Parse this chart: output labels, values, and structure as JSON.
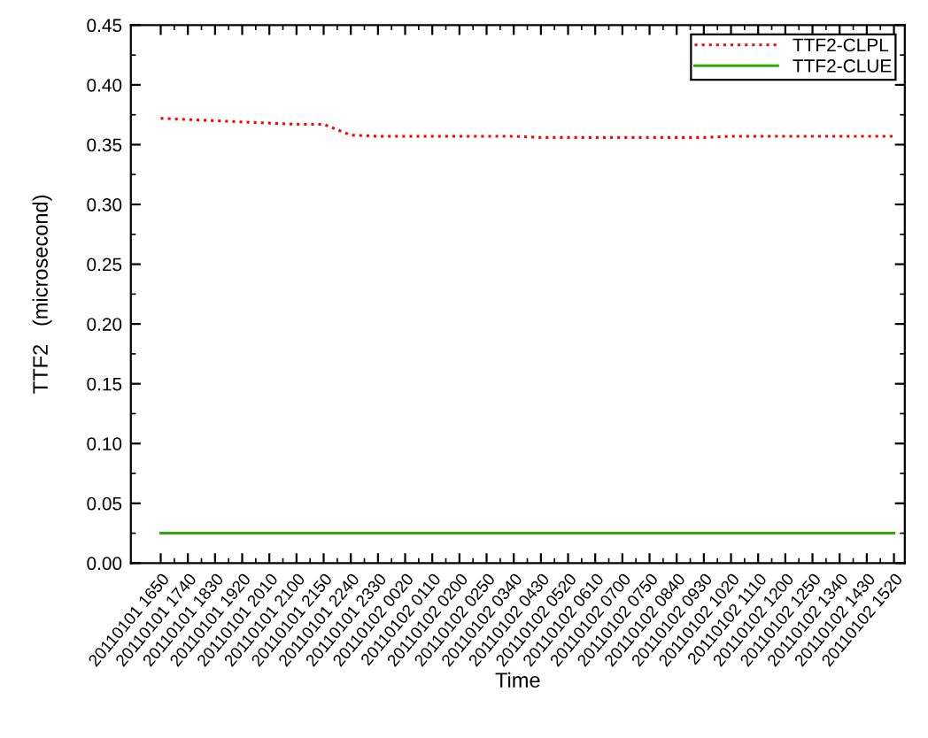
{
  "chart_data": {
    "type": "line",
    "xlabel": "Time",
    "ylabel": "TTF2   (microsecond)",
    "categories": [
      "20110101 1650",
      "20110101 1740",
      "20110101 1830",
      "20110101 1920",
      "20110101 2010",
      "20110101 2100",
      "20110101 2150",
      "20110101 2240",
      "20110101 2330",
      "20110102 0020",
      "20110102 0110",
      "20110102 0200",
      "20110102 0250",
      "20110102 0340",
      "20110102 0430",
      "20110102 0520",
      "20110102 0610",
      "20110102 0700",
      "20110102 0750",
      "20110102 0840",
      "20110102 0930",
      "20110102 1020",
      "20110102 1110",
      "20110102 1200",
      "20110102 1250",
      "20110102 1340",
      "20110102 1430",
      "20110102 1520"
    ],
    "series": [
      {
        "name": "TTF2-CLPL",
        "color": "#ff0000",
        "line_style": "dotted",
        "values": [
          0.372,
          0.371,
          0.37,
          0.369,
          0.368,
          0.367,
          0.367,
          0.358,
          0.357,
          0.357,
          0.357,
          0.357,
          0.357,
          0.357,
          0.356,
          0.356,
          0.356,
          0.356,
          0.356,
          0.356,
          0.356,
          0.357,
          0.357,
          0.357,
          0.357,
          0.357,
          0.357,
          0.357
        ]
      },
      {
        "name": "TTF2-CLUE",
        "color": "#33aa00",
        "line_style": "solid",
        "values": [
          0.025,
          0.025,
          0.025,
          0.025,
          0.025,
          0.025,
          0.025,
          0.025,
          0.025,
          0.025,
          0.025,
          0.025,
          0.025,
          0.025,
          0.025,
          0.025,
          0.025,
          0.025,
          0.025,
          0.025,
          0.025,
          0.025,
          0.025,
          0.025,
          0.025,
          0.025,
          0.025,
          0.025
        ]
      }
    ],
    "ylim": [
      0,
      0.45
    ],
    "yticks": [
      {
        "value": 0,
        "label": "0.00"
      },
      {
        "value": 0.05,
        "label": "0.05"
      },
      {
        "value": 0.1,
        "label": "0.10"
      },
      {
        "value": 0.15,
        "label": "0.15"
      },
      {
        "value": 0.2,
        "label": "0.20"
      },
      {
        "value": 0.25,
        "label": "0.25"
      },
      {
        "value": 0.3,
        "label": "0.30"
      },
      {
        "value": 0.35,
        "label": "0.35"
      },
      {
        "value": 0.4,
        "label": "0.40"
      },
      {
        "value": 0.45,
        "label": "0.45"
      }
    ],
    "grid": false,
    "legend": "top right",
    "marker": "none"
  }
}
